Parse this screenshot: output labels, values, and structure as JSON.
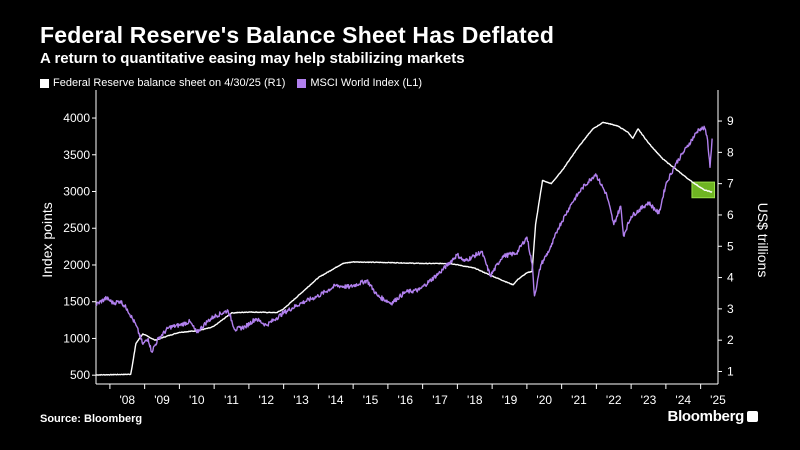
{
  "title": "Federal Reserve's Balance Sheet Has Deflated",
  "subtitle": "A return to quantitative easing may help stabilizing markets",
  "source": "Source: Bloomberg",
  "brand": "Bloomberg",
  "chart_data": {
    "type": "line",
    "left_axis": {
      "label": "Index points",
      "ticks": [
        500,
        1000,
        1500,
        2000,
        2500,
        3000,
        3500,
        4000
      ],
      "range": [
        380,
        4300
      ]
    },
    "right_axis": {
      "label": "US$ trillions",
      "ticks": [
        1,
        2,
        3,
        4,
        5,
        6,
        7,
        8,
        9
      ],
      "range": [
        0.6,
        9.8
      ]
    },
    "x_ticks": [
      "'08",
      "'09",
      "'10",
      "'11",
      "'12",
      "'13",
      "'14",
      "'15",
      "'16",
      "'17",
      "'18",
      "'19",
      "'20",
      "'21",
      "'22",
      "'23",
      "'24",
      "'25"
    ],
    "x_range": [
      2007.6,
      2025.5
    ],
    "series": [
      {
        "name": "Federal Reserve balance sheet on 4/30/25 (R1)",
        "axis": "right",
        "color": "#ffffff",
        "points": [
          [
            2007.6,
            0.89
          ],
          [
            2008.6,
            0.91
          ],
          [
            2008.75,
            1.9
          ],
          [
            2008.95,
            2.2
          ],
          [
            2009.3,
            2.0
          ],
          [
            2009.7,
            2.15
          ],
          [
            2010.0,
            2.25
          ],
          [
            2010.5,
            2.3
          ],
          [
            2010.9,
            2.4
          ],
          [
            2011.0,
            2.45
          ],
          [
            2011.5,
            2.87
          ],
          [
            2012.0,
            2.9
          ],
          [
            2012.8,
            2.88
          ],
          [
            2013.0,
            3.0
          ],
          [
            2013.5,
            3.5
          ],
          [
            2014.0,
            4.0
          ],
          [
            2014.7,
            4.45
          ],
          [
            2015.0,
            4.5
          ],
          [
            2016.0,
            4.48
          ],
          [
            2017.0,
            4.45
          ],
          [
            2017.8,
            4.45
          ],
          [
            2018.5,
            4.3
          ],
          [
            2019.0,
            4.05
          ],
          [
            2019.6,
            3.77
          ],
          [
            2019.75,
            3.95
          ],
          [
            2020.0,
            4.15
          ],
          [
            2020.15,
            4.2
          ],
          [
            2020.25,
            5.7
          ],
          [
            2020.45,
            7.1
          ],
          [
            2020.7,
            7.0
          ],
          [
            2021.0,
            7.4
          ],
          [
            2021.5,
            8.2
          ],
          [
            2021.9,
            8.75
          ],
          [
            2022.2,
            8.96
          ],
          [
            2022.6,
            8.85
          ],
          [
            2022.9,
            8.65
          ],
          [
            2023.05,
            8.45
          ],
          [
            2023.2,
            8.75
          ],
          [
            2023.5,
            8.3
          ],
          [
            2023.9,
            7.8
          ],
          [
            2024.3,
            7.45
          ],
          [
            2024.7,
            7.1
          ],
          [
            2025.1,
            6.8
          ],
          [
            2025.33,
            6.73
          ]
        ]
      },
      {
        "name": "MSCI World Index (L1)",
        "axis": "left",
        "color": "#b180ee",
        "points": [
          [
            2007.6,
            1460
          ],
          [
            2007.9,
            1550
          ],
          [
            2008.1,
            1480
          ],
          [
            2008.3,
            1510
          ],
          [
            2008.5,
            1400
          ],
          [
            2008.75,
            1180
          ],
          [
            2008.95,
            920
          ],
          [
            2009.1,
            1000
          ],
          [
            2009.2,
            820
          ],
          [
            2009.4,
            1000
          ],
          [
            2009.7,
            1150
          ],
          [
            2010.0,
            1180
          ],
          [
            2010.3,
            1230
          ],
          [
            2010.5,
            1080
          ],
          [
            2010.8,
            1230
          ],
          [
            2011.0,
            1300
          ],
          [
            2011.4,
            1380
          ],
          [
            2011.6,
            1120
          ],
          [
            2011.9,
            1160
          ],
          [
            2012.2,
            1270
          ],
          [
            2012.5,
            1180
          ],
          [
            2012.8,
            1280
          ],
          [
            2013.0,
            1350
          ],
          [
            2013.5,
            1480
          ],
          [
            2014.0,
            1580
          ],
          [
            2014.5,
            1720
          ],
          [
            2014.9,
            1700
          ],
          [
            2015.4,
            1790
          ],
          [
            2015.7,
            1580
          ],
          [
            2016.1,
            1480
          ],
          [
            2016.5,
            1630
          ],
          [
            2016.9,
            1660
          ],
          [
            2017.5,
            1900
          ],
          [
            2018.0,
            2140
          ],
          [
            2018.2,
            2050
          ],
          [
            2018.7,
            2180
          ],
          [
            2018.95,
            1850
          ],
          [
            2019.3,
            2120
          ],
          [
            2019.7,
            2160
          ],
          [
            2020.0,
            2380
          ],
          [
            2020.15,
            2020
          ],
          [
            2020.22,
            1580
          ],
          [
            2020.4,
            2000
          ],
          [
            2020.7,
            2250
          ],
          [
            2020.9,
            2500
          ],
          [
            2021.3,
            2850
          ],
          [
            2021.6,
            3050
          ],
          [
            2021.98,
            3240
          ],
          [
            2022.3,
            2950
          ],
          [
            2022.5,
            2550
          ],
          [
            2022.7,
            2800
          ],
          [
            2022.78,
            2400
          ],
          [
            2023.0,
            2660
          ],
          [
            2023.5,
            2850
          ],
          [
            2023.8,
            2700
          ],
          [
            2024.0,
            3100
          ],
          [
            2024.3,
            3390
          ],
          [
            2024.6,
            3600
          ],
          [
            2024.95,
            3850
          ],
          [
            2025.12,
            3860
          ],
          [
            2025.2,
            3700
          ],
          [
            2025.27,
            3330
          ],
          [
            2025.33,
            3720
          ]
        ]
      }
    ],
    "highlight": {
      "x": [
        2024.75,
        2025.4
      ],
      "y_right": [
        6.55,
        7.05
      ],
      "color": "#6fb523"
    }
  }
}
